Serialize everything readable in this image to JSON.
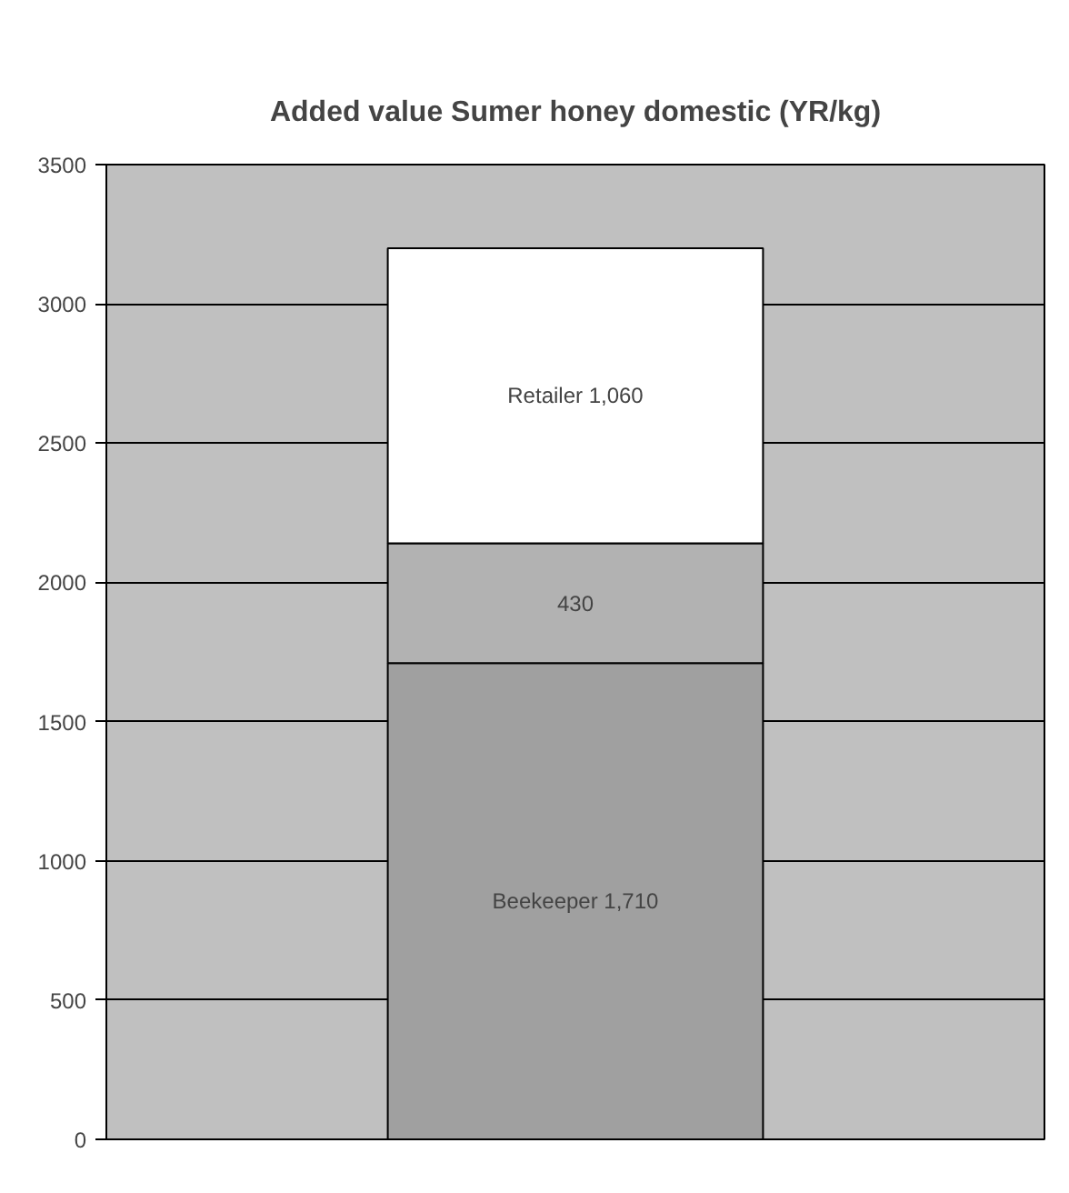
{
  "chart_data": {
    "type": "bar",
    "title": "Added value Sumer honey domestic (YR/kg)",
    "categories": [
      null
    ],
    "stacked": true,
    "series": [
      {
        "color": "#a0a0a0",
        "values": [
          1710
        ],
        "value_labels": [
          "Beekeeper 1,710"
        ]
      },
      {
        "color": "#b2b2b2",
        "values": [
          430
        ],
        "value_labels": [
          "430"
        ]
      },
      {
        "color": "#ffffff",
        "values": [
          1060
        ],
        "value_labels": [
          "Retailer 1,060"
        ]
      }
    ],
    "ylim": [
      0,
      3500
    ],
    "yticks": [
      0,
      500,
      1000,
      1500,
      2000,
      2500,
      3000,
      3500
    ],
    "grid": "y",
    "tick_labels": "y"
  }
}
